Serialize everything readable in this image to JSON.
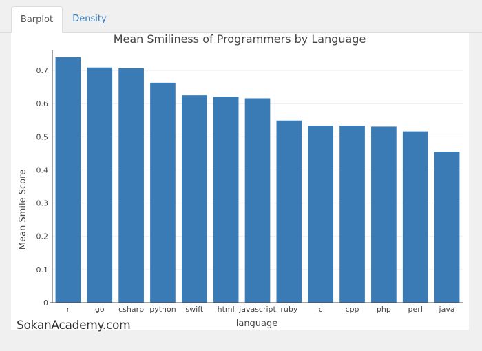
{
  "tabs": [
    {
      "label": "Barplot",
      "active": true
    },
    {
      "label": "Density",
      "active": false
    }
  ],
  "watermark": "SokanAcademy.com",
  "colors": {
    "bar": "#3a7ab5",
    "grid": "#eeeeee",
    "axis": "#444444",
    "tab_link": "#337ab7"
  },
  "chart_data": {
    "type": "bar",
    "title": "Mean Smiliness of Programmers by Language",
    "xlabel": "language",
    "ylabel": "Mean Smile Score",
    "ylim": [
      0,
      0.75
    ],
    "yticks": [
      0,
      0.1,
      0.2,
      0.3,
      0.4,
      0.5,
      0.6,
      0.7
    ],
    "ytick_labels": [
      "0",
      "0.1",
      "0.2",
      "0.3",
      "0.4",
      "0.5",
      "0.6",
      "0.7"
    ],
    "grid": true,
    "categories": [
      "r",
      "go",
      "csharp",
      "python",
      "swift",
      "html",
      "javascript",
      "ruby",
      "c",
      "cpp",
      "php",
      "perl",
      "java"
    ],
    "values": [
      0.74,
      0.709,
      0.707,
      0.663,
      0.625,
      0.621,
      0.616,
      0.549,
      0.534,
      0.534,
      0.531,
      0.516,
      0.455
    ]
  }
}
